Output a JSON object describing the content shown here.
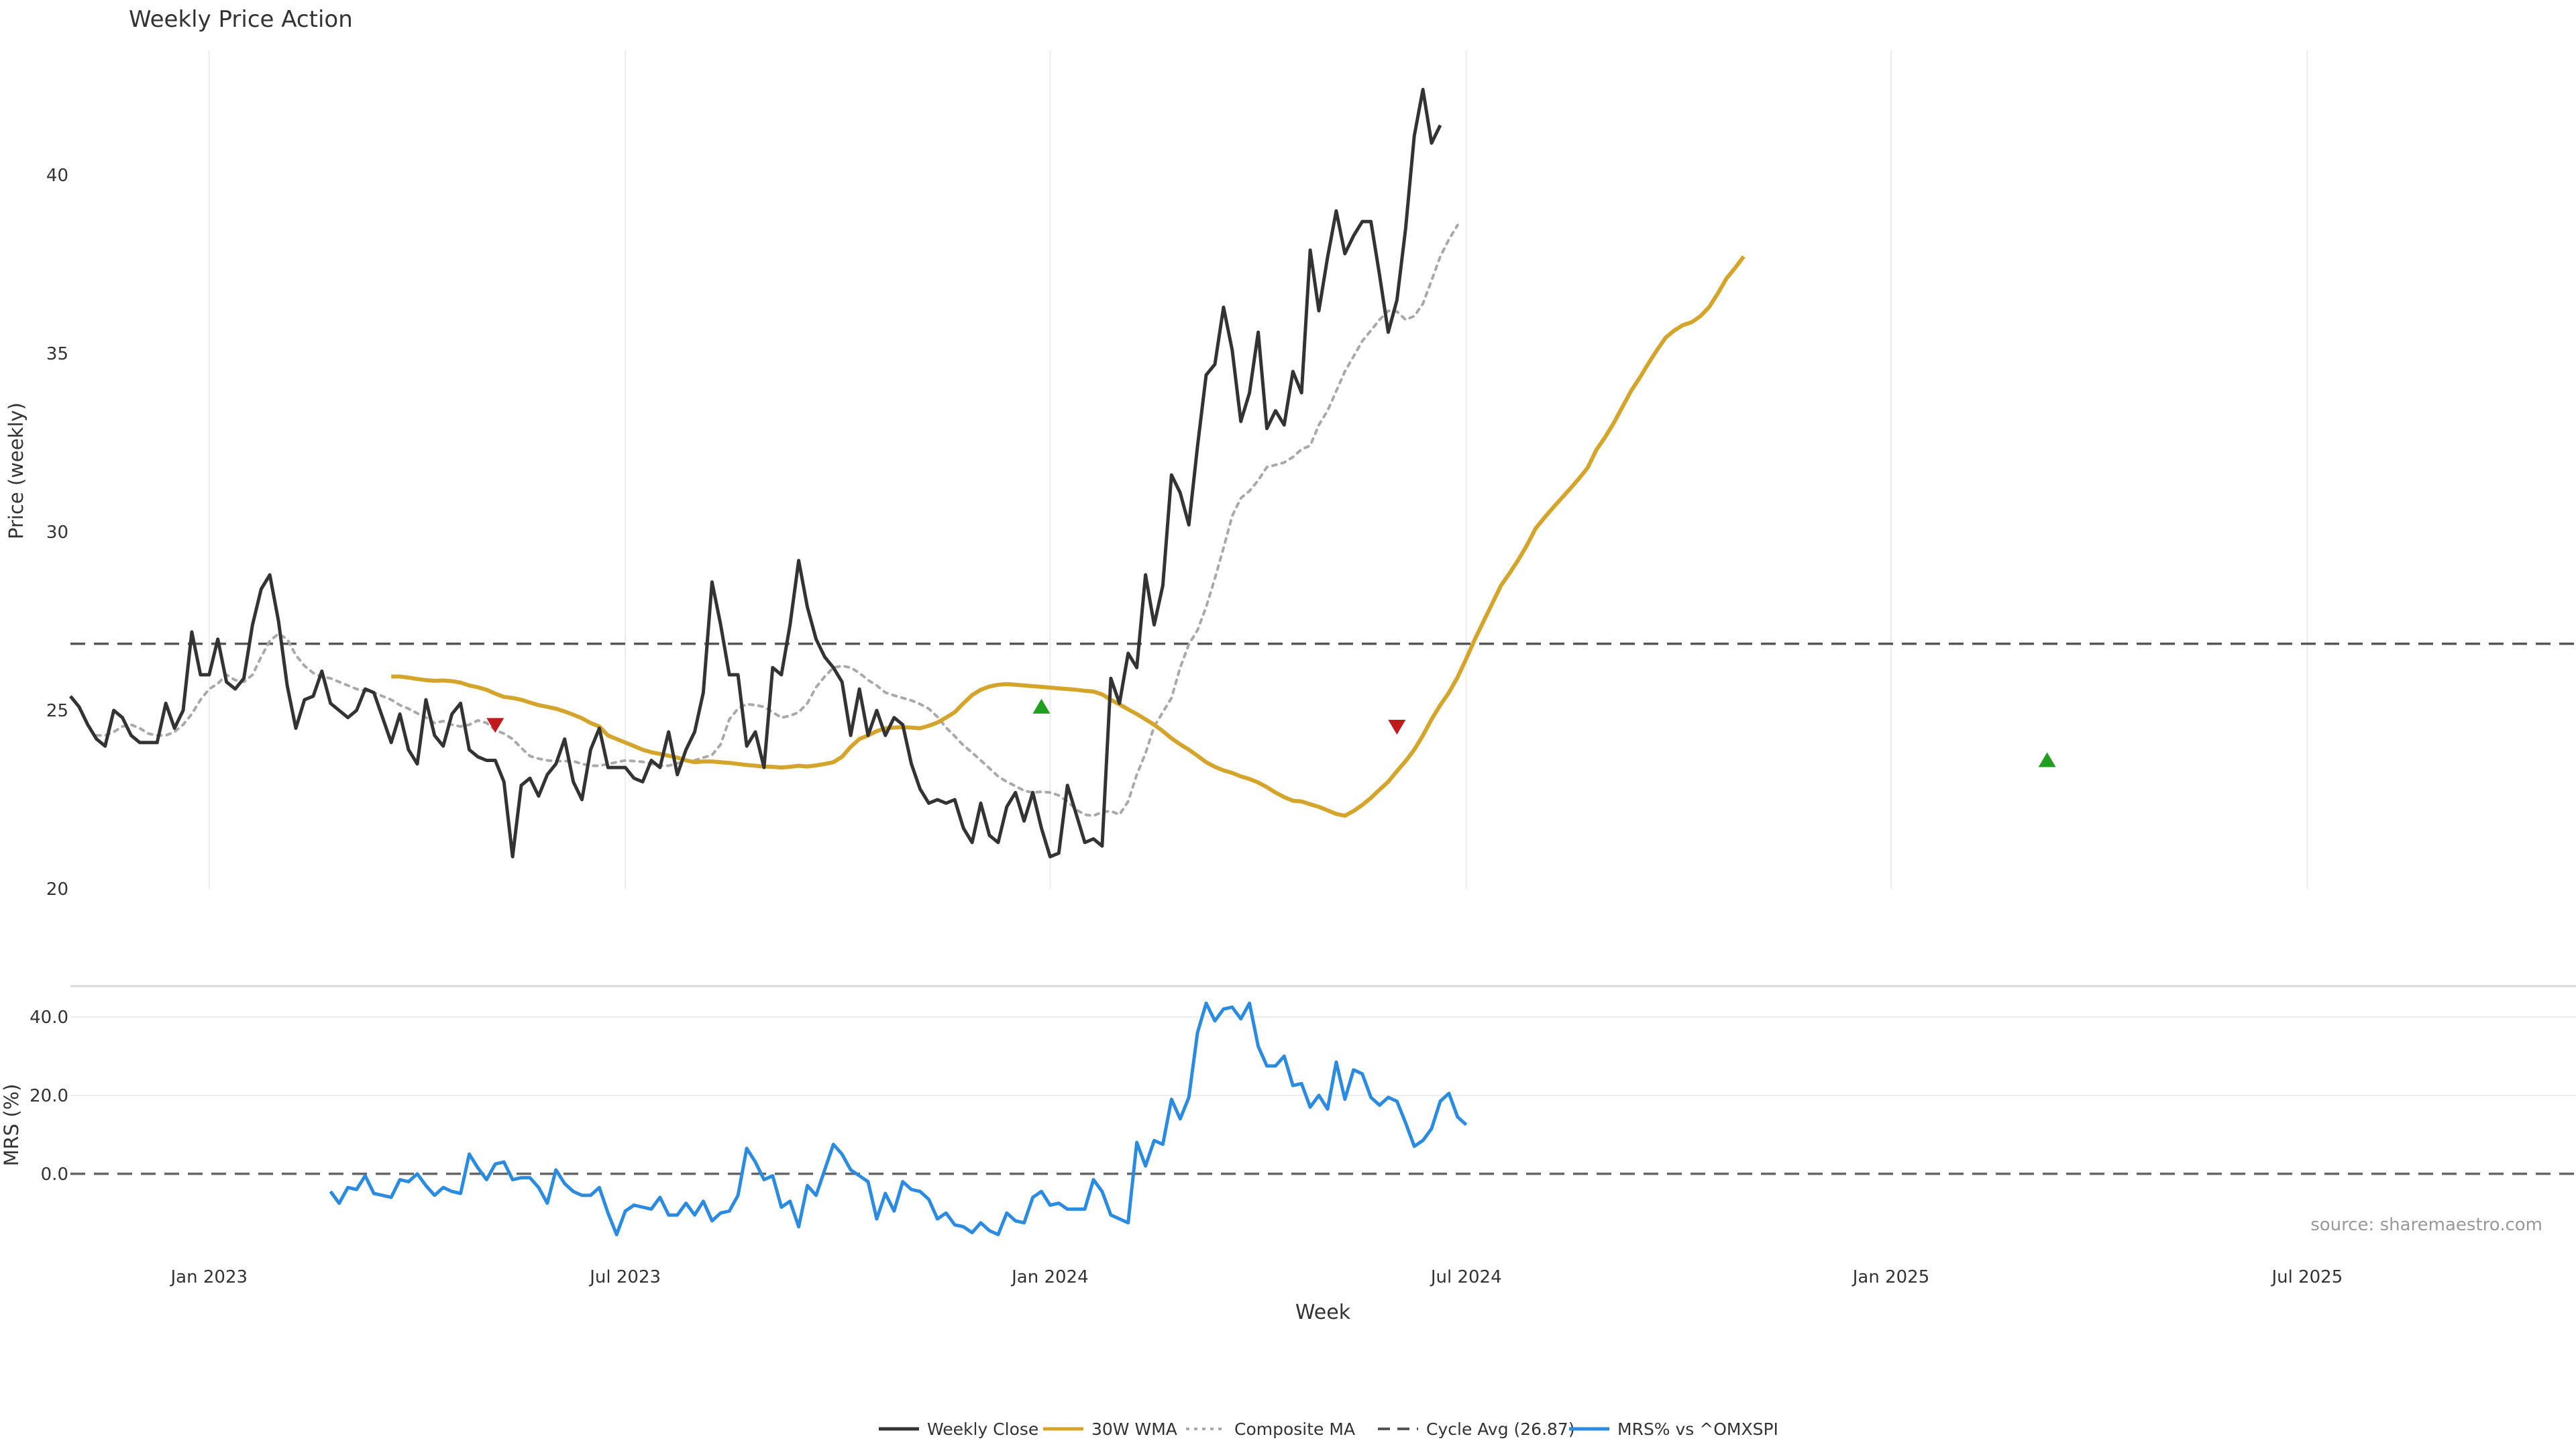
{
  "chart_data": {
    "type": "line",
    "title": "Weekly Price Action",
    "xlabel": "Week",
    "source": "source: sharemaestro.com",
    "x_ticks": [
      "Jan 2023",
      "Jul 2023",
      "Jan 2024",
      "Jul 2024",
      "Jan 2025",
      "Jul 2025"
    ],
    "x_tick_weeks": [
      8,
      56,
      105,
      153,
      202,
      250
    ],
    "x_range": [
      -8,
      281
    ],
    "colors": {
      "close": "#333333",
      "wma": "#d4a52a",
      "composite": "#a9a9a9",
      "cycle": "#555555",
      "mrs": "#2a8be0",
      "buy": "#1f9e1f",
      "sell": "#c0181b",
      "grid": "#ececec"
    },
    "price_panel": {
      "ylabel": "Price (weekly)",
      "ylim": [
        20,
        43.5
      ],
      "yticks": [
        "20",
        "25",
        "30",
        "35",
        "40"
      ],
      "ytick_values": [
        20,
        25,
        30,
        35,
        40
      ],
      "cycle_avg": 26.87,
      "series": [
        {
          "name": "Weekly Close",
          "start_week": -8,
          "values": [
            25.4,
            25.1,
            24.6,
            24.2,
            24.0,
            25.0,
            24.8,
            24.3,
            24.1,
            24.1,
            24.1,
            25.2,
            24.5,
            25.0,
            27.2,
            26.0,
            26.0,
            27.0,
            25.8,
            25.6,
            25.9,
            27.4,
            28.4,
            28.8,
            27.5,
            25.7,
            24.5,
            25.3,
            25.4,
            26.1,
            25.2,
            25.0,
            24.8,
            25.0,
            25.6,
            25.5,
            24.8,
            24.1,
            24.9,
            23.9,
            23.5,
            25.3,
            24.3,
            24.0,
            24.9,
            25.2,
            23.9,
            23.7,
            23.6,
            23.6,
            23.0,
            20.9,
            22.9,
            23.1,
            22.6,
            23.2,
            23.5,
            24.2,
            23.0,
            22.5,
            23.9,
            24.5,
            23.4,
            23.4,
            23.4,
            23.1,
            23.0,
            23.6,
            23.4,
            24.4,
            23.2,
            23.9,
            24.4,
            25.5,
            28.6,
            27.4,
            26.0,
            26.0,
            24.0,
            24.4,
            23.4,
            26.2,
            26.0,
            27.4,
            29.2,
            27.9,
            27.0,
            26.5,
            26.2,
            25.8,
            24.3,
            25.6,
            24.3,
            25.0,
            24.3,
            24.8,
            24.6,
            23.5,
            22.8,
            22.4,
            22.5,
            22.4,
            22.5,
            21.7,
            21.3,
            22.4,
            21.5,
            21.3,
            22.3,
            22.7,
            21.9,
            22.7,
            21.7,
            20.9,
            21.0,
            22.9,
            22.1,
            21.3,
            21.4,
            21.2,
            25.9,
            25.2,
            26.6,
            26.2,
            28.8,
            27.4,
            28.5,
            31.6,
            31.1,
            30.2,
            32.4,
            34.4,
            34.7,
            36.3,
            35.1,
            33.1,
            33.9,
            35.6,
            32.9,
            33.4,
            33.0,
            34.5,
            33.9,
            37.9,
            36.2,
            37.7,
            39.0,
            37.8,
            38.3,
            38.7,
            38.7,
            37.2,
            35.6,
            36.5,
            38.5,
            41.1,
            42.4,
            40.9,
            41.4
          ]
        },
        {
          "name": "30W WMA",
          "start_week": 29,
          "values": [
            25.95,
            25.95,
            25.92,
            25.88,
            25.85,
            25.83,
            25.84,
            25.82,
            25.78,
            25.7,
            25.65,
            25.58,
            25.47,
            25.38,
            25.35,
            25.3,
            25.22,
            25.15,
            25.1,
            25.05,
            24.97,
            24.88,
            24.78,
            24.65,
            24.55,
            24.3,
            24.2,
            24.1,
            24.0,
            23.9,
            23.83,
            23.78,
            23.73,
            23.68,
            23.6,
            23.55,
            23.57,
            23.57,
            23.55,
            23.53,
            23.5,
            23.47,
            23.45,
            23.43,
            23.42,
            23.4,
            23.42,
            23.45,
            23.43,
            23.46,
            23.5,
            23.55,
            23.7,
            23.98,
            24.2,
            24.3,
            24.42,
            24.5,
            24.52,
            24.53,
            24.52,
            24.5,
            24.57,
            24.66,
            24.8,
            24.95,
            25.2,
            25.43,
            25.58,
            25.67,
            25.72,
            25.74,
            25.72,
            25.7,
            25.68,
            25.66,
            25.64,
            25.62,
            25.6,
            25.58,
            25.55,
            25.53,
            25.45,
            25.3,
            25.17,
            25.03,
            24.9,
            24.75,
            24.6,
            24.42,
            24.22,
            24.05,
            23.9,
            23.73,
            23.55,
            23.42,
            23.32,
            23.25,
            23.15,
            23.08,
            22.98,
            22.85,
            22.7,
            22.57,
            22.47,
            22.45,
            22.37,
            22.3,
            22.2,
            22.1,
            22.05,
            22.18,
            22.35,
            22.55,
            22.78,
            23.0,
            23.3,
            23.58,
            23.9,
            24.3,
            24.75,
            25.15,
            25.5,
            25.93,
            26.45,
            27.0,
            27.5,
            28.0,
            28.5,
            28.85,
            29.22,
            29.63,
            30.1,
            30.4,
            30.68,
            30.95,
            31.22,
            31.5,
            31.8,
            32.3,
            32.65,
            33.05,
            33.5,
            33.95,
            34.32,
            34.72,
            35.1,
            35.45,
            35.65,
            35.8,
            35.88,
            36.05,
            36.3,
            36.68,
            37.1,
            37.4,
            37.72
          ]
        },
        {
          "name": "Composite MA",
          "start_week": -5,
          "values": [
            24.3,
            24.3,
            24.4,
            24.55,
            24.6,
            24.5,
            24.35,
            24.3,
            24.3,
            24.4,
            24.6,
            24.9,
            25.3,
            25.6,
            25.75,
            26.0,
            25.85,
            25.8,
            26.0,
            26.5,
            26.95,
            27.15,
            27.0,
            26.55,
            26.25,
            26.05,
            25.95,
            25.9,
            25.8,
            25.7,
            25.6,
            25.55,
            25.5,
            25.4,
            25.3,
            25.15,
            25.05,
            24.92,
            24.8,
            24.65,
            24.7,
            24.6,
            24.55,
            24.6,
            24.72,
            24.65,
            24.45,
            24.35,
            24.2,
            23.95,
            23.72,
            23.65,
            23.6,
            23.58,
            23.58,
            23.58,
            23.5,
            23.45,
            23.45,
            23.5,
            23.55,
            23.6,
            23.58,
            23.56,
            23.5,
            23.45,
            23.45,
            23.52,
            23.6,
            23.6,
            23.68,
            23.75,
            24.05,
            24.75,
            25.05,
            25.18,
            25.15,
            25.1,
            24.95,
            24.8,
            24.85,
            24.95,
            25.2,
            25.65,
            25.95,
            26.2,
            26.25,
            26.2,
            26.05,
            25.85,
            25.7,
            25.5,
            25.42,
            25.35,
            25.28,
            25.18,
            25.05,
            24.82,
            24.52,
            24.28,
            24.02,
            23.82,
            23.6,
            23.38,
            23.15,
            23.0,
            22.88,
            22.75,
            22.7,
            22.72,
            22.7,
            22.62,
            22.45,
            22.22,
            22.08,
            22.05,
            22.15,
            22.18,
            22.08,
            22.45,
            23.2,
            23.8,
            24.55,
            24.95,
            25.35,
            26.2,
            26.85,
            27.25,
            27.9,
            28.7,
            29.55,
            30.45,
            30.95,
            31.15,
            31.45,
            31.82,
            31.88,
            31.95,
            32.1,
            32.32,
            32.42,
            33.0,
            33.4,
            33.95,
            34.5,
            34.92,
            35.35,
            35.65,
            35.95,
            36.2,
            36.18,
            35.95,
            36.05,
            36.4,
            37.05,
            37.72,
            38.2,
            38.6
          ]
        }
      ],
      "signals": [
        {
          "type": "sell",
          "week": 41,
          "value": 24.6
        },
        {
          "type": "buy",
          "week": 104,
          "value": 25.1
        },
        {
          "type": "sell",
          "week": 145,
          "value": 24.55
        },
        {
          "type": "buy",
          "week": 220,
          "value": 23.6
        }
      ]
    },
    "mrs_panel": {
      "ylabel": "MRS (%)",
      "ylim": [
        -18,
        47
      ],
      "yticks": [
        "0.0",
        "20.0",
        "40.0"
      ],
      "ytick_values": [
        0,
        20,
        40
      ],
      "zero_line": 0,
      "series": [
        {
          "name": "MRS% vs ^OMXSPI",
          "start_week": 22,
          "values": [
            -4.5,
            -7.5,
            -3.5,
            -4.0,
            -0.5,
            -5.0,
            -5.5,
            -6.0,
            -1.5,
            -2.0,
            0.0,
            -3.0,
            -5.5,
            -3.5,
            -4.5,
            -5.0,
            5.0,
            1.5,
            -1.5,
            2.5,
            3.0,
            -1.5,
            -1.0,
            -1.0,
            -3.5,
            -7.5,
            1.0,
            -2.5,
            -4.5,
            -5.5,
            -5.5,
            -3.5,
            -10.0,
            -15.5,
            -9.5,
            -8.0,
            -8.5,
            -9.0,
            -6.0,
            -10.5,
            -10.5,
            -7.5,
            -10.5,
            -7.0,
            -12.0,
            -10.0,
            -9.5,
            -5.5,
            6.5,
            3.0,
            -1.5,
            -0.5,
            -8.5,
            -7.0,
            -13.5,
            -3.0,
            -5.5,
            1.0,
            7.5,
            5.0,
            1.0,
            -0.5,
            -2.0,
            -11.5,
            -5.0,
            -9.5,
            -2.0,
            -4.0,
            -4.5,
            -6.5,
            -11.5,
            -10.0,
            -13.0,
            -13.5,
            -15.0,
            -12.5,
            -14.5,
            -15.5,
            -10.0,
            -12.0,
            -12.5,
            -6.0,
            -4.5,
            -8.0,
            -7.5,
            -9.0,
            -9.0,
            -9.0,
            -1.5,
            -4.5,
            -10.5,
            -11.5,
            -12.5,
            8.0,
            2.0,
            8.5,
            7.5,
            19.0,
            14.0,
            19.5,
            36.0,
            43.5,
            39.0,
            42.0,
            42.5,
            39.5,
            43.5,
            32.5,
            27.5,
            27.5,
            30.0,
            22.5,
            23.0,
            17.0,
            20.0,
            16.5,
            28.5,
            19.0,
            26.5,
            25.5,
            19.5,
            17.5,
            19.5,
            18.5,
            13.0,
            7.0,
            8.5,
            11.5,
            18.5,
            20.5,
            14.5,
            12.5
          ]
        }
      ]
    },
    "legend": {
      "placement": "bottom-center",
      "items": [
        {
          "label": "Weekly Close",
          "style": "solid",
          "color": "#333333"
        },
        {
          "label": "30W WMA",
          "style": "solid",
          "color": "#d4a52a"
        },
        {
          "label": "Composite MA",
          "style": "dotted",
          "color": "#a9a9a9"
        },
        {
          "label": "Cycle Avg (26.87)",
          "style": "dashed",
          "color": "#555555"
        },
        {
          "label": "MRS% vs ^OMXSPI",
          "style": "solid",
          "color": "#2a8be0"
        }
      ]
    }
  }
}
